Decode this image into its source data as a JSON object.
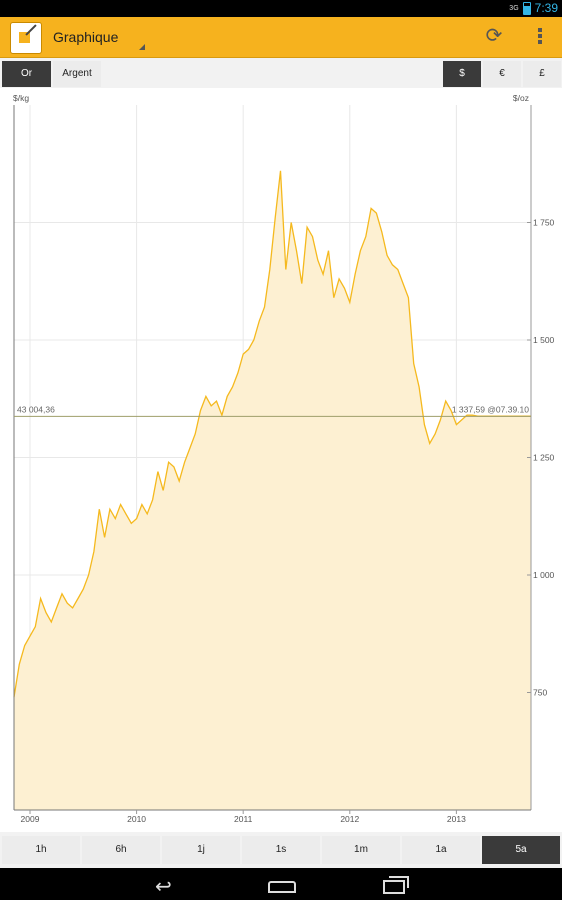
{
  "status_bar": {
    "network": "3G",
    "time": "7:39"
  },
  "header": {
    "title": "Graphique"
  },
  "metal_tabs": [
    {
      "label": "Or",
      "active": true
    },
    {
      "label": "Argent",
      "active": false
    }
  ],
  "currency_tabs": [
    {
      "label": "$",
      "active": true
    },
    {
      "label": "€",
      "active": false
    },
    {
      "label": "£",
      "active": false
    }
  ],
  "chart": {
    "left_unit": "$/kg",
    "right_unit": "$/oz",
    "crosshair_left_value": "43 004,36",
    "crosshair_right_value": "1 337,59 @07.39.10"
  },
  "periods": [
    {
      "label": "1h",
      "active": false
    },
    {
      "label": "6h",
      "active": false
    },
    {
      "label": "1j",
      "active": false
    },
    {
      "label": "1s",
      "active": false
    },
    {
      "label": "1m",
      "active": false
    },
    {
      "label": "1a",
      "active": false
    },
    {
      "label": "5a",
      "active": true
    }
  ],
  "chart_data": {
    "type": "area",
    "xlabel": "",
    "ylabel": "$/oz",
    "ylim": [
      500,
      2000
    ],
    "xlim": [
      2008.85,
      2013.7
    ],
    "yticks": [
      {
        "value": 750,
        "label": "750"
      },
      {
        "value": 1000,
        "label": "1 000"
      },
      {
        "value": 1250,
        "label": "1 250"
      },
      {
        "value": 1500,
        "label": "1 500"
      },
      {
        "value": 1750,
        "label": "1 750"
      }
    ],
    "xticks": [
      {
        "value": 2009,
        "label": "2009"
      },
      {
        "value": 2010,
        "label": "2010"
      },
      {
        "value": 2011,
        "label": "2011"
      },
      {
        "value": 2012,
        "label": "2012"
      },
      {
        "value": 2013,
        "label": "2013"
      }
    ],
    "crosshair_value": 1337.59,
    "line_color": "#f5b91e",
    "fill_color": "#fdf0d2",
    "series": [
      {
        "x": [
          2008.85,
          2008.9,
          2008.95,
          2009.0,
          2009.05,
          2009.1,
          2009.15,
          2009.2,
          2009.25,
          2009.3,
          2009.35,
          2009.4,
          2009.45,
          2009.5,
          2009.55,
          2009.6,
          2009.65,
          2009.7,
          2009.75,
          2009.8,
          2009.85,
          2009.9,
          2009.95,
          2010.0,
          2010.05,
          2010.1,
          2010.15,
          2010.2,
          2010.25,
          2010.3,
          2010.35,
          2010.4,
          2010.45,
          2010.5,
          2010.55,
          2010.6,
          2010.65,
          2010.7,
          2010.75,
          2010.8,
          2010.85,
          2010.9,
          2010.95,
          2011.0,
          2011.05,
          2011.1,
          2011.15,
          2011.2,
          2011.25,
          2011.3,
          2011.35,
          2011.4,
          2011.45,
          2011.5,
          2011.55,
          2011.6,
          2011.65,
          2011.7,
          2011.75,
          2011.8,
          2011.85,
          2011.9,
          2011.95,
          2012.0,
          2012.05,
          2012.1,
          2012.15,
          2012.2,
          2012.25,
          2012.3,
          2012.35,
          2012.4,
          2012.45,
          2012.5,
          2012.55,
          2012.6,
          2012.65,
          2012.7,
          2012.75,
          2012.8,
          2012.85,
          2012.9,
          2012.95,
          2013.0,
          2013.05,
          2013.1,
          2013.15,
          2013.2,
          2013.25,
          2013.3,
          2013.35,
          2013.4,
          2013.45,
          2013.5,
          2013.55,
          2013.6,
          2013.65,
          2013.7
        ],
        "values": [
          740,
          810,
          850,
          870,
          890,
          950,
          920,
          900,
          930,
          960,
          940,
          930,
          950,
          970,
          1000,
          1050,
          1140,
          1080,
          1140,
          1120,
          1150,
          1130,
          1110,
          1120,
          1150,
          1130,
          1160,
          1220,
          1180,
          1240,
          1230,
          1200,
          1240,
          1270,
          1300,
          1350,
          1380,
          1360,
          1370,
          1340,
          1380,
          1400,
          1430,
          1470,
          1480,
          1500,
          1540,
          1570,
          1650,
          1760,
          1860,
          1650,
          1750,
          1690,
          1620,
          1740,
          1720,
          1670,
          1640,
          1690,
          1590,
          1630,
          1610,
          1580,
          1640,
          1690,
          1720,
          1780,
          1770,
          1730,
          1680,
          1660,
          1650,
          1620,
          1590,
          1450,
          1400,
          1320,
          1280,
          1300,
          1330,
          1370,
          1350,
          1320,
          1330,
          1340,
          1340,
          1338,
          1338,
          1338,
          1338,
          1338,
          1338,
          1338,
          1338,
          1338,
          1338,
          1338
        ]
      }
    ]
  }
}
